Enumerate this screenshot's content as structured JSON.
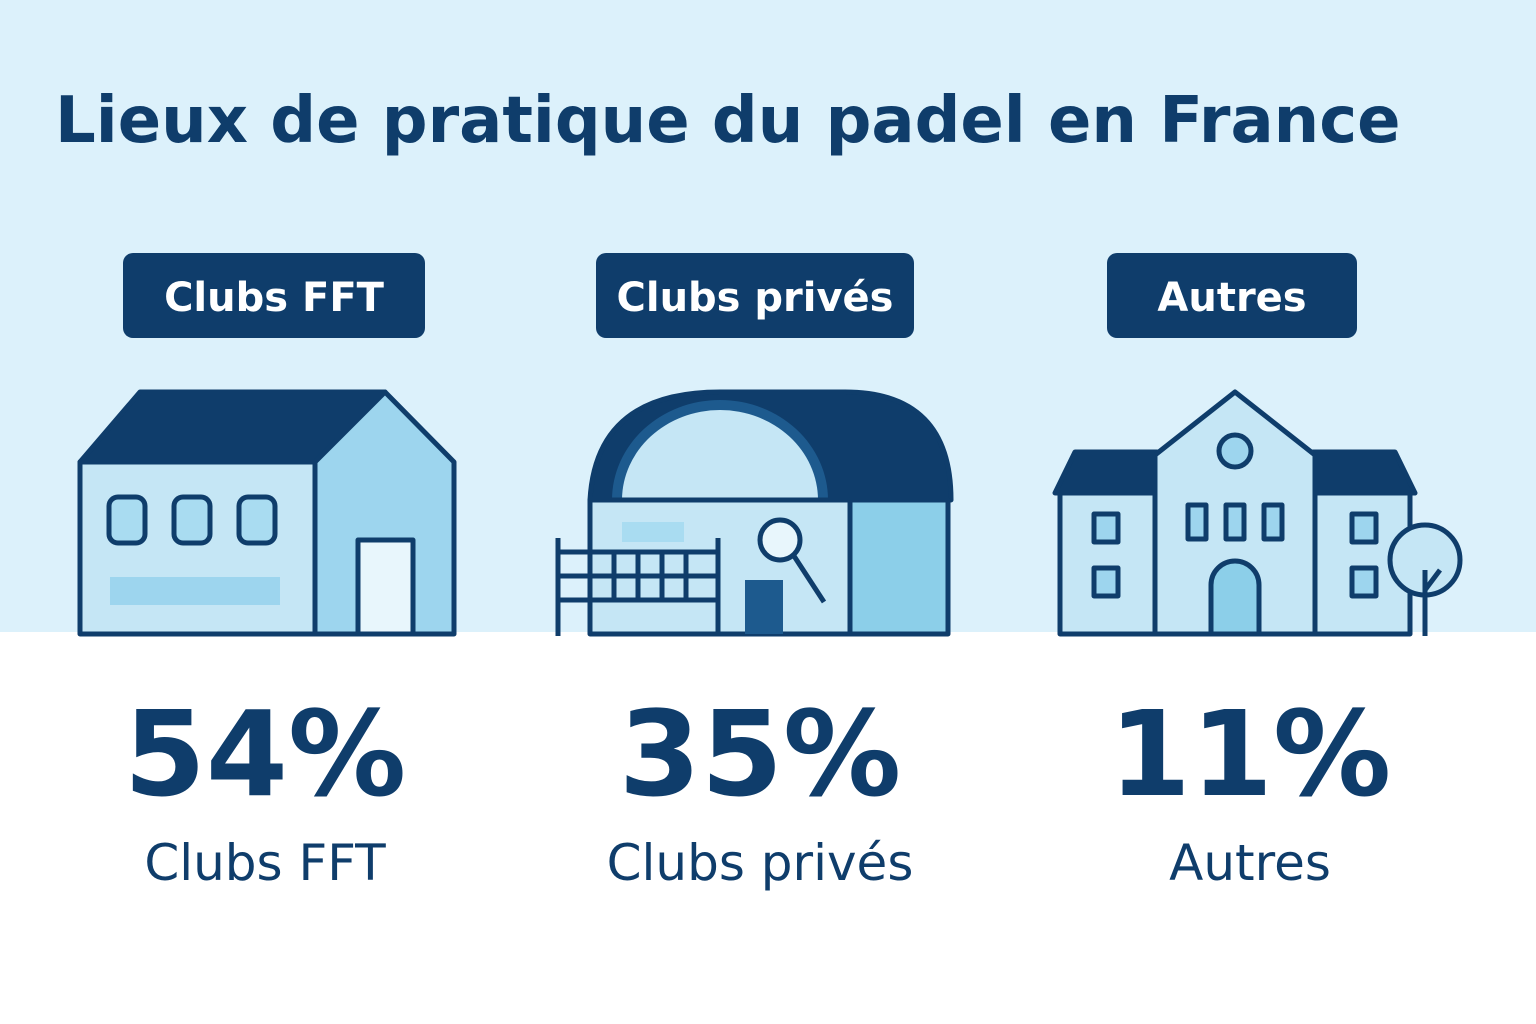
{
  "header": {
    "title": "Lieux de pratique du padel en France"
  },
  "items": [
    {
      "label": "Clubs FFT",
      "value": "54%",
      "caption": "Clubs FFT"
    },
    {
      "label": "Clubs privés",
      "value": "35%",
      "caption": "Clubs privés"
    },
    {
      "label": "Autres",
      "value": "11%",
      "caption": "Autres"
    }
  ]
}
